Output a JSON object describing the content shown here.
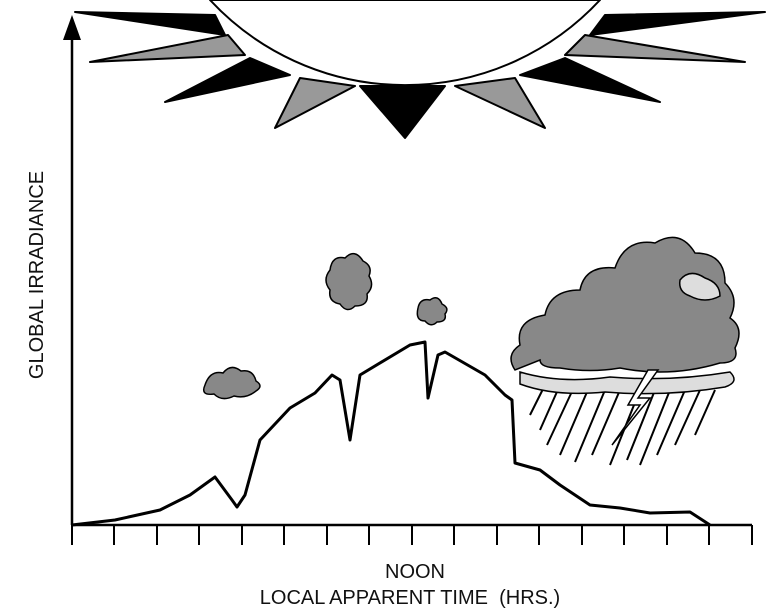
{
  "axis_labels": {
    "y": "GLOBAL IRRADIANCE",
    "x_top": "NOON",
    "x_bottom": "LOCAL APPARENT TIME  (HRS.)"
  }
}
